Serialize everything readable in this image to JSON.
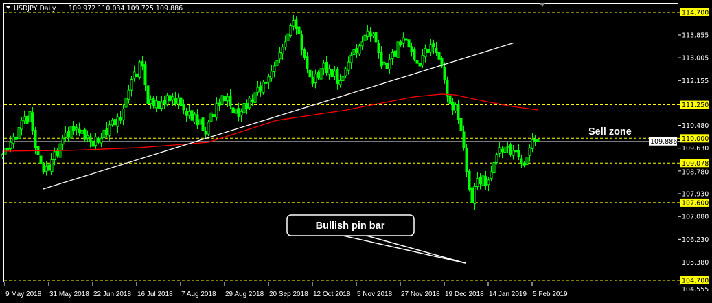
{
  "header": {
    "symbol": "USDJPY,Daily",
    "ohlc": "109.972 110.034 109.725 109.886",
    "menu_icon": "triangle-down-icon"
  },
  "annotations": {
    "sell_zone": "Sell zone",
    "pin_bar_callout": "Bullish pin bar"
  },
  "colors": {
    "background": "#000000",
    "candles": "#00ff00",
    "moving_average": "#ff0000",
    "trendline": "#ffffff",
    "levels": "#ffff00",
    "current_price_line": "#a0a0a0"
  },
  "chart_data": {
    "type": "candlestick",
    "timeframe": "Daily",
    "symbol": "USDJPY",
    "ylim": [
      104.555,
      114.9
    ],
    "y_ticks": [
      "114.700",
      "113.855",
      "113.005",
      "112.155",
      "111.250",
      "110.480",
      "110.000",
      "109.886",
      "109.630",
      "109.078",
      "108.780",
      "107.930",
      "107.600",
      "107.080",
      "106.230",
      "105.380",
      "104.700",
      "104.555"
    ],
    "highlighted_ticks": [
      "114.700",
      "111.250",
      "110.000",
      "109.078",
      "107.600",
      "104.700"
    ],
    "current_price": 109.886,
    "x_tick_labels": [
      "9 May 2018",
      "31 May 2018",
      "22 Jun 2018",
      "16 Jul 2018",
      "7 Aug 2018",
      "29 Aug 2018",
      "20 Sep 2018",
      "12 Oct 2018",
      "5 Nov 2018",
      "27 Nov 2018",
      "19 Dec 2018",
      "14 Jan 2019",
      "5 Feb 2019"
    ],
    "x_tick_bar_index": [
      1,
      17,
      33,
      49,
      65,
      81,
      97,
      113,
      129,
      145,
      161,
      177,
      193
    ],
    "horizontal_levels": [
      114.7,
      111.25,
      110.0,
      109.078,
      107.6,
      104.7
    ],
    "closes": [
      109.4,
      109.62,
      109.55,
      109.85,
      110.05,
      109.95,
      110.4,
      110.67,
      110.8,
      110.55,
      111.0,
      110.3,
      109.65,
      109.4,
      109.05,
      108.75,
      108.95,
      108.8,
      109.2,
      109.5,
      109.35,
      109.8,
      110.0,
      110.2,
      110.05,
      110.45,
      110.3,
      110.4,
      110.2,
      110.3,
      109.95,
      110.1,
      109.9,
      109.7,
      110.05,
      109.85,
      110.0,
      110.3,
      110.15,
      110.5,
      110.67,
      110.5,
      110.8,
      110.67,
      111.1,
      111.5,
      111.8,
      112.2,
      112.47,
      112.3,
      112.85,
      112.7,
      112.0,
      111.3,
      111.45,
      111.2,
      111.4,
      111.1,
      111.35,
      111.3,
      111.6,
      111.4,
      111.55,
      111.3,
      111.5,
      111.2,
      111.06,
      110.85,
      111.0,
      110.67,
      110.9,
      110.5,
      110.7,
      110.3,
      110.16,
      110.6,
      110.95,
      110.8,
      111.3,
      111.2,
      111.6,
      111.4,
      111.55,
      111.2,
      110.95,
      111.1,
      110.8,
      111.0,
      111.3,
      111.1,
      111.5,
      111.35,
      111.7,
      111.9,
      111.75,
      112.1,
      112.05,
      112.3,
      112.5,
      112.7,
      112.9,
      113.2,
      113.4,
      113.6,
      113.9,
      114.2,
      114.4,
      114.1,
      113.9,
      113.3,
      113.0,
      112.6,
      112.3,
      112.05,
      112.4,
      112.25,
      112.6,
      112.8,
      112.45,
      112.6,
      112.3,
      112.5,
      112.05,
      112.15,
      112.3,
      112.6,
      112.85,
      113.1,
      113.3,
      113.2,
      113.45,
      113.6,
      113.85,
      114.0,
      113.8,
      113.9,
      113.6,
      113.2,
      112.7,
      112.85,
      112.6,
      112.95,
      113.2,
      113.05,
      113.6,
      113.5,
      113.75,
      113.7,
      113.4,
      113.25,
      112.95,
      112.8,
      112.7,
      113.1,
      113.35,
      113.2,
      113.5,
      113.4,
      113.2,
      112.95,
      112.7,
      112.2,
      111.57,
      111.3,
      111.06,
      111.25,
      110.7,
      110.3,
      109.65,
      108.75,
      108.1,
      107.6,
      108.2,
      108.5,
      108.3,
      108.6,
      108.25,
      108.45,
      108.75,
      109.1,
      109.4,
      109.65,
      109.5,
      109.65,
      109.7,
      109.4,
      109.55,
      109.5,
      109.3,
      109.1,
      109.0,
      109.3,
      109.65,
      109.95,
      109.9,
      109.886
    ],
    "pin_bar": {
      "bar_index": 171,
      "low": 104.7
    },
    "moving_average": [
      [
        0,
        109.52
      ],
      [
        25,
        109.55
      ],
      [
        50,
        109.65
      ],
      [
        75,
        109.85
      ],
      [
        100,
        110.67
      ],
      [
        125,
        111.05
      ],
      [
        140,
        111.35
      ],
      [
        150,
        111.55
      ],
      [
        160,
        111.65
      ],
      [
        165,
        111.62
      ],
      [
        175,
        111.4
      ],
      [
        185,
        111.2
      ],
      [
        195,
        111.06
      ]
    ],
    "trendline": {
      "start": {
        "bar_index": 15,
        "price": 108.11
      },
      "end": {
        "bar_index": 186.5,
        "price": 113.57
      }
    }
  }
}
